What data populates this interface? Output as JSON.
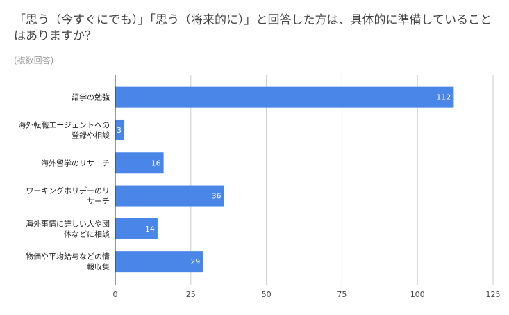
{
  "title": "「思う（今すぐにでも）」「思う（将来的に）」と回答した方は、具体的に準備していることはありますか？",
  "subtitle": "(複数回答)",
  "colors": {
    "bar": "#4a86e8",
    "grid": "#cccccc",
    "axis": "#333333"
  },
  "chart_data": {
    "type": "bar",
    "orientation": "horizontal",
    "title": "「思う（今すぐにでも）」「思う（将来的に）」と回答した方は、具体的に準備していることはありますか？",
    "subtitle": "(複数回答)",
    "categories": [
      [
        "語学の勉強"
      ],
      [
        "海外転職エージェントへの",
        "登録や相談"
      ],
      [
        "海外留学のリサーチ"
      ],
      [
        "ワーキングホリデーのリ",
        "サーチ"
      ],
      [
        "海外事情に詳しい人や団",
        "体などに相談"
      ],
      [
        "物価や平均給与などの情",
        "報収集"
      ]
    ],
    "values": [
      112,
      3,
      16,
      36,
      14,
      29
    ],
    "xlim": [
      0,
      125
    ],
    "ticks": [
      0,
      25,
      50,
      75,
      100,
      125
    ],
    "grid": true,
    "legend": "none"
  }
}
